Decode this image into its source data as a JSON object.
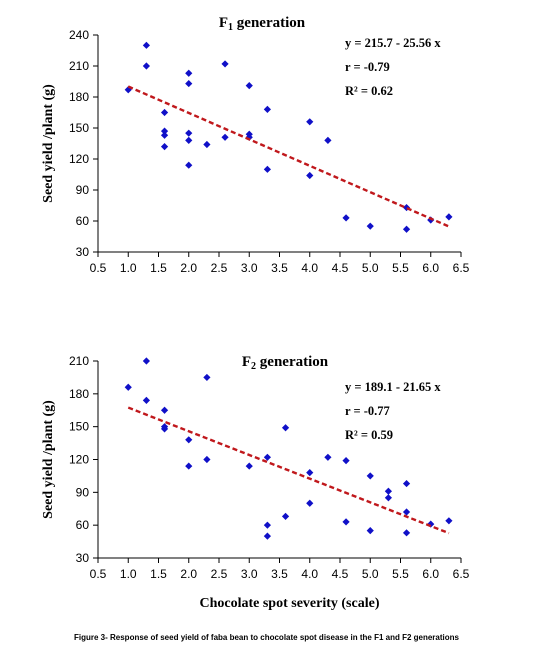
{
  "caption": "Figure 3- Response of seed yield of faba bean to chocolate spot disease in the F1 and F2 generations",
  "colors": {
    "marker": "#1010c8",
    "trend": "#c0181c",
    "axis": "#000000"
  },
  "chart_data": [
    {
      "type": "scatter",
      "title": "F1 generation",
      "title_main": "F",
      "title_sub": "1",
      "title_rest": " generation",
      "ylabel": "Seed yield /plant (g)",
      "xlabel": "",
      "xlim": [
        0.5,
        6.5
      ],
      "ylim": [
        30,
        240
      ],
      "xticks": [
        "0.5",
        "1.0",
        "1.5",
        "2.0",
        "2.5",
        "3.0",
        "3.5",
        "4.0",
        "4.5",
        "5.0",
        "5.5",
        "6.0",
        "6.5"
      ],
      "yticks": [
        "30",
        "60",
        "90",
        "120",
        "150",
        "180",
        "210",
        "240"
      ],
      "annotations": [
        "y = 215.7 - 25.56 x",
        "r = -0.79",
        "R² = 0.62"
      ],
      "trendline": {
        "intercept": 215.7,
        "slope": -25.56,
        "x_range": [
          1.0,
          6.3
        ]
      },
      "points": [
        [
          1.0,
          187
        ],
        [
          1.3,
          230
        ],
        [
          1.3,
          210
        ],
        [
          1.6,
          165
        ],
        [
          1.6,
          147
        ],
        [
          1.6,
          143
        ],
        [
          1.6,
          132
        ],
        [
          2.0,
          203
        ],
        [
          2.0,
          193
        ],
        [
          2.0,
          145
        ],
        [
          2.0,
          138
        ],
        [
          2.0,
          114
        ],
        [
          2.3,
          134
        ],
        [
          2.6,
          212
        ],
        [
          2.6,
          141
        ],
        [
          3.0,
          191
        ],
        [
          3.0,
          144
        ],
        [
          3.0,
          141
        ],
        [
          3.3,
          168
        ],
        [
          3.3,
          110
        ],
        [
          4.0,
          156
        ],
        [
          4.0,
          104
        ],
        [
          4.3,
          138
        ],
        [
          4.6,
          63
        ],
        [
          5.0,
          55
        ],
        [
          5.6,
          73
        ],
        [
          5.6,
          52
        ],
        [
          6.0,
          61
        ],
        [
          6.3,
          64
        ]
      ]
    },
    {
      "type": "scatter",
      "title": "F2 generation",
      "title_main": "F",
      "title_sub": "2",
      "title_rest": " generation",
      "ylabel": "Seed yield /plant (g)",
      "xlabel": "Chocolate spot severity (scale)",
      "xlim": [
        0.5,
        6.5
      ],
      "ylim": [
        30,
        210
      ],
      "xticks": [
        "0.5",
        "1.0",
        "1.5",
        "2.0",
        "2.5",
        "3.0",
        "3.5",
        "4.0",
        "4.5",
        "5.0",
        "5.5",
        "6.0",
        "6.5"
      ],
      "yticks": [
        "30",
        "60",
        "90",
        "120",
        "150",
        "180",
        "210"
      ],
      "annotations": [
        "y = 189.1 - 21.65 x",
        "r = -0.77",
        "R² = 0.59"
      ],
      "trendline": {
        "intercept": 189.1,
        "slope": -21.65,
        "x_range": [
          1.0,
          6.3
        ]
      },
      "points": [
        [
          1.0,
          186
        ],
        [
          1.3,
          210
        ],
        [
          1.3,
          174
        ],
        [
          1.6,
          165
        ],
        [
          1.6,
          150
        ],
        [
          1.6,
          148
        ],
        [
          2.0,
          138
        ],
        [
          2.0,
          114
        ],
        [
          2.3,
          195
        ],
        [
          2.3,
          120
        ],
        [
          3.0,
          114
        ],
        [
          3.3,
          122
        ],
        [
          3.3,
          60
        ],
        [
          3.3,
          50
        ],
        [
          3.6,
          149
        ],
        [
          3.6,
          68
        ],
        [
          4.0,
          108
        ],
        [
          4.0,
          80
        ],
        [
          4.3,
          122
        ],
        [
          4.6,
          119
        ],
        [
          4.6,
          63
        ],
        [
          5.0,
          105
        ],
        [
          5.0,
          55
        ],
        [
          5.3,
          91
        ],
        [
          5.3,
          85
        ],
        [
          5.6,
          98
        ],
        [
          5.6,
          72
        ],
        [
          5.6,
          53
        ],
        [
          6.0,
          61
        ],
        [
          6.3,
          64
        ]
      ]
    }
  ]
}
